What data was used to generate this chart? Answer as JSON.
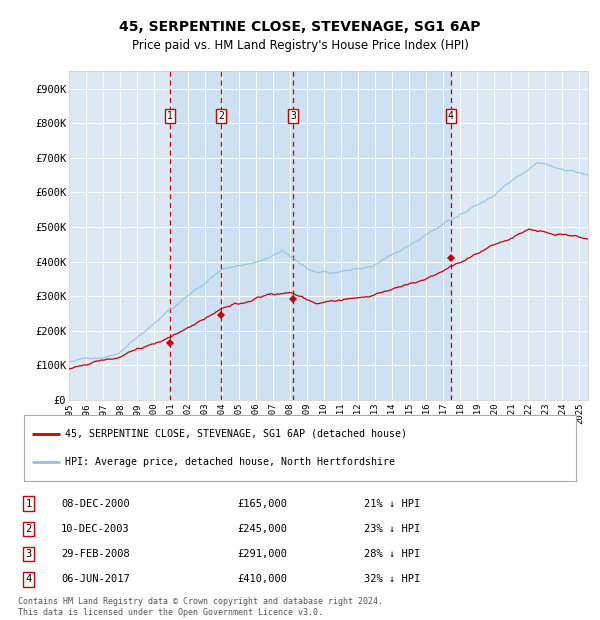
{
  "title": "45, SERPENTINE CLOSE, STEVENAGE, SG1 6AP",
  "subtitle": "Price paid vs. HM Land Registry's House Price Index (HPI)",
  "background_color": "#ffffff",
  "plot_bg_color": "#dce9f5",
  "grid_color": "#ffffff",
  "hpi_line_color": "#8ec4e8",
  "price_line_color": "#cc0000",
  "marker_color": "#cc0000",
  "vline_color": "#cc0000",
  "purchases": [
    {
      "label": "1",
      "date": 2000.92,
      "price": 165000,
      "hpi_discount": "21% ↓ HPI",
      "date_str": "08-DEC-2000",
      "price_str": "£165,000"
    },
    {
      "label": "2",
      "date": 2003.92,
      "price": 245000,
      "hpi_discount": "23% ↓ HPI",
      "date_str": "10-DEC-2003",
      "price_str": "£245,000"
    },
    {
      "label": "3",
      "date": 2008.16,
      "price": 291000,
      "hpi_discount": "28% ↓ HPI",
      "date_str": "29-FEB-2008",
      "price_str": "£291,000"
    },
    {
      "label": "4",
      "date": 2017.43,
      "price": 410000,
      "hpi_discount": "32% ↓ HPI",
      "date_str": "06-JUN-2017",
      "price_str": "£410,000"
    }
  ],
  "ylim": [
    0,
    950000
  ],
  "xlim": [
    1995.0,
    2025.5
  ],
  "yticks": [
    0,
    100000,
    200000,
    300000,
    400000,
    500000,
    600000,
    700000,
    800000,
    900000
  ],
  "ytick_labels": [
    "£0",
    "£100K",
    "£200K",
    "£300K",
    "£400K",
    "£500K",
    "£600K",
    "£700K",
    "£800K",
    "£900K"
  ],
  "xticks": [
    1995,
    1996,
    1997,
    1998,
    1999,
    2000,
    2001,
    2002,
    2003,
    2004,
    2005,
    2006,
    2007,
    2008,
    2009,
    2010,
    2011,
    2012,
    2013,
    2014,
    2015,
    2016,
    2017,
    2018,
    2019,
    2020,
    2021,
    2022,
    2023,
    2024,
    2025
  ],
  "legend_label_price": "45, SERPENTINE CLOSE, STEVENAGE, SG1 6AP (detached house)",
  "legend_label_hpi": "HPI: Average price, detached house, North Hertfordshire",
  "footer": "Contains HM Land Registry data © Crown copyright and database right 2024.\nThis data is licensed under the Open Government Licence v3.0."
}
